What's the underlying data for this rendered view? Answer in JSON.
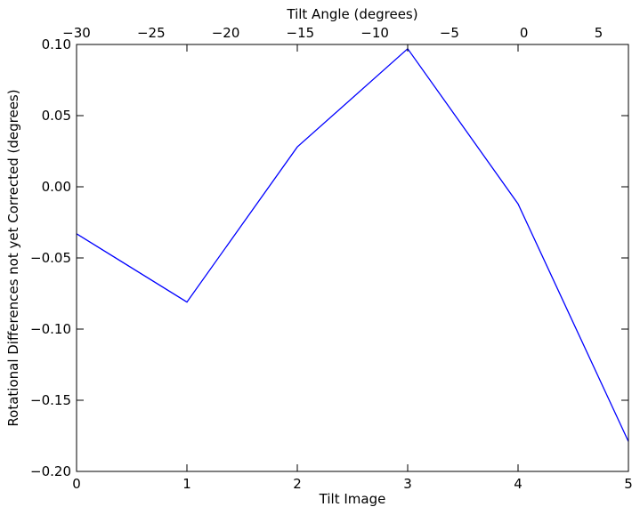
{
  "chart_data": {
    "type": "line",
    "title": "",
    "xlabel": "Tilt Image",
    "ylabel": "Rotational Differences not yet Corrected (degrees)",
    "x2label": "Tilt Angle (degrees)",
    "xlim": [
      0,
      5
    ],
    "ylim": [
      -0.2,
      0.1
    ],
    "x2lim": [
      -30,
      7
    ],
    "grid": false,
    "legend": "none",
    "x_ticks": [
      0,
      1,
      2,
      3,
      4,
      5
    ],
    "x_tick_labels": [
      "0",
      "1",
      "2",
      "3",
      "4",
      "5"
    ],
    "y_ticks": [
      -0.2,
      -0.15,
      -0.1,
      -0.05,
      0.0,
      0.05,
      0.1
    ],
    "y_tick_labels": [
      "−0.20",
      "−0.15",
      "−0.10",
      "−0.05",
      "0.00",
      "0.05",
      "0.10"
    ],
    "x2_ticks": [
      -30,
      -25,
      -20,
      -15,
      -10,
      -5,
      0,
      5
    ],
    "x2_tick_labels": [
      "−30",
      "−25",
      "−20",
      "−15",
      "−10",
      "−5",
      "0",
      "5"
    ],
    "series": [
      {
        "color": "#0000ff",
        "x": [
          0,
          1,
          2,
          3,
          4,
          5
        ],
        "y": [
          -0.033,
          -0.081,
          0.028,
          0.097,
          -0.012,
          -0.179
        ]
      }
    ]
  }
}
